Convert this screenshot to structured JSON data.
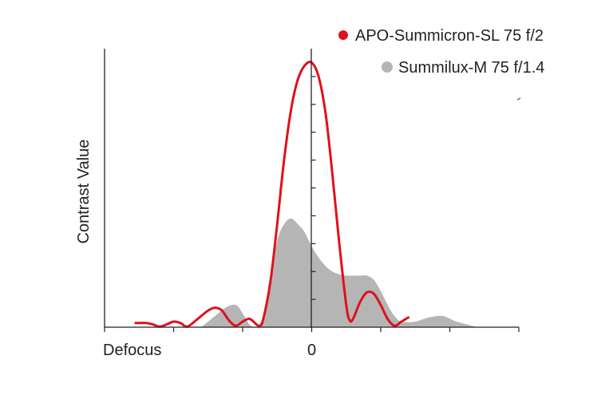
{
  "chart_data": {
    "type": "area",
    "title": "",
    "xlabel": "",
    "ylabel": "Contrast Value",
    "x_tick_labels": [
      {
        "x": -3,
        "label": "Defocus"
      },
      {
        "x": 0,
        "label": "0"
      }
    ],
    "xlim": [
      -3,
      3
    ],
    "ylim": [
      0,
      100
    ],
    "grid": false,
    "legend_position": "top-right",
    "series": [
      {
        "name": "Summilux-M 75 f/1.4",
        "style": "filled-area",
        "color": "#b5b5b5",
        "x": [
          -1.6,
          -1.4,
          -1.25,
          -1.1,
          -1.0,
          -0.9,
          -0.8,
          -0.7,
          -0.6,
          -0.5,
          -0.4,
          -0.3,
          -0.2,
          -0.1,
          0.0,
          0.1,
          0.2,
          0.3,
          0.4,
          0.5,
          0.6,
          0.7,
          0.8,
          0.9,
          1.0,
          1.1,
          1.2,
          1.3,
          1.5,
          1.7,
          1.9,
          2.1,
          2.4
        ],
        "values": [
          0,
          4,
          7,
          8,
          5,
          1,
          0,
          4,
          17,
          31,
          37,
          39,
          37,
          34,
          29,
          25,
          22,
          20,
          19,
          18.5,
          18.5,
          18.5,
          18.5,
          17,
          13,
          8,
          4,
          2,
          2,
          3.5,
          4,
          2,
          0
        ]
      },
      {
        "name": "APO-Summicron-SL 75 f/2",
        "style": "line",
        "color": "#e0101c",
        "x": [
          -2.55,
          -2.4,
          -2.3,
          -2.2,
          -2.1,
          -2.0,
          -1.9,
          -1.8,
          -1.65,
          -1.5,
          -1.4,
          -1.3,
          -1.2,
          -1.1,
          -1.0,
          -0.9,
          -0.8,
          -0.75,
          -0.7,
          -0.6,
          -0.5,
          -0.4,
          -0.3,
          -0.2,
          -0.1,
          0.0,
          0.1,
          0.2,
          0.3,
          0.4,
          0.5,
          0.55,
          0.6,
          0.7,
          0.8,
          0.9,
          1.0,
          1.1,
          1.2,
          1.3,
          1.4
        ],
        "values": [
          1.5,
          1.5,
          1,
          0.2,
          1,
          2,
          1.5,
          0.2,
          3,
          6,
          7,
          6,
          2.5,
          0.5,
          2,
          3,
          1,
          0.5,
          3,
          16,
          37,
          60,
          78,
          89,
          94,
          95,
          90,
          77,
          55,
          30,
          8,
          2.5,
          3,
          9,
          12.5,
          12,
          8,
          3,
          0.5,
          2,
          3.5
        ]
      }
    ]
  }
}
